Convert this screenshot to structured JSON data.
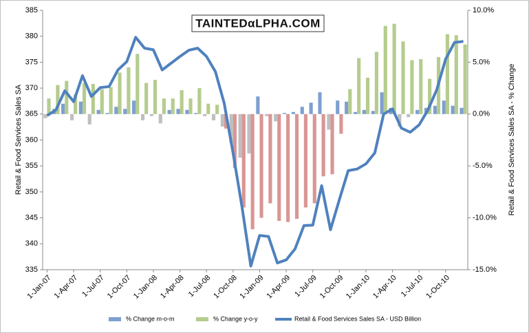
{
  "chart_data": {
    "type": "bar",
    "logo": "TAINTEDαLPHA.COM",
    "y_label": "Retail & Food Services Sales SA",
    "y2_label": "Retail & Food Services Sales SA - % Change",
    "categories": [
      "1-Jan-07",
      null,
      null,
      "1-Apr-07",
      null,
      null,
      "1-Jul-07",
      null,
      null,
      "1-Oct-07",
      null,
      null,
      "1-Jan-08",
      null,
      null,
      "1-Apr-08",
      null,
      null,
      "1-Jul-08",
      null,
      null,
      "1-Oct-08",
      null,
      null,
      "1-Jan-09",
      null,
      null,
      "1-Apr-09",
      null,
      null,
      "1-Jul-09",
      null,
      null,
      "1-Oct-09",
      null,
      null,
      "1-Jan-10",
      null,
      null,
      "1-Apr-10",
      null,
      null,
      "1-Jul-10",
      null,
      null,
      "1-Oct-10",
      null,
      null
    ],
    "series": [
      {
        "name": "% Change m-o-m",
        "type": "bar",
        "axis": "y2",
        "color": "#7f9fd0",
        "negative_color": "#bfbfbf",
        "values": [
          -0.4,
          0.5,
          1.0,
          -0.6,
          1.2,
          -1.0,
          0.4,
          0.1,
          0.7,
          0.5,
          1.3,
          -0.6,
          -0.2,
          -0.9,
          0.4,
          0.5,
          0.4,
          0.1,
          -0.2,
          -0.6,
          -1.2,
          -2.8,
          -4.2,
          -3.8,
          1.7,
          -0.2,
          -0.7,
          0.1,
          0.2,
          0.7,
          1.1,
          2.1,
          -1.5,
          1.3,
          1.2,
          0.2,
          0.4,
          0.3,
          2.1,
          0.6,
          -1.2,
          -0.3,
          0.4,
          0.6,
          0.8,
          1.3,
          0.8,
          0.6
        ]
      },
      {
        "name": "% Change y-o-y",
        "type": "bar",
        "axis": "y2",
        "color": "#b5cc8e",
        "negative_color": "#d99694",
        "values": [
          1.5,
          2.8,
          3.2,
          1.9,
          3.0,
          2.9,
          2.4,
          2.6,
          4.0,
          4.5,
          5.8,
          3.0,
          3.3,
          1.5,
          1.5,
          2.3,
          1.5,
          2.5,
          1.0,
          0.9,
          -1.4,
          -5.2,
          -9.0,
          -11.1,
          -10.0,
          -8.6,
          -10.3,
          -10.4,
          -10.1,
          -9.0,
          -8.6,
          -6.0,
          -5.8,
          -1.9,
          2.4,
          5.4,
          3.5,
          6.0,
          8.5,
          8.7,
          7.0,
          5.2,
          5.3,
          3.4,
          5.5,
          7.7,
          7.6,
          6.7
        ]
      },
      {
        "name": "Retail & Food Services Sales SA - USD Billion",
        "type": "line",
        "axis": "y",
        "color": "#4f81bd",
        "values": [
          364.7,
          365.8,
          369.5,
          367.4,
          372.4,
          368.4,
          370.1,
          370.3,
          373.5,
          375.1,
          379.8,
          377.7,
          377.4,
          373.5,
          374.8,
          376.1,
          377.3,
          377.7,
          376.1,
          373.2,
          367.1,
          357.5,
          347.2,
          335.7,
          341.6,
          341.4,
          336.3,
          336.9,
          339.0,
          343.5,
          343.6,
          351.2,
          342.7,
          348.5,
          354.1,
          354.4,
          355.4,
          357.5,
          365.0,
          366.0,
          362.3,
          361.5,
          362.9,
          365.8,
          369.7,
          375.6,
          378.8,
          379.0
        ]
      }
    ],
    "ylim": [
      335,
      385
    ],
    "yticks": [
      335,
      340,
      345,
      350,
      355,
      360,
      365,
      370,
      375,
      380,
      385
    ],
    "y2lim": [
      -15,
      10
    ],
    "y2ticks": [
      {
        "value": -15,
        "label": "-15.0%"
      },
      {
        "value": -10,
        "label": "-10.0%"
      },
      {
        "value": -5,
        "label": "-5.0%"
      },
      {
        "value": 0,
        "label": "0.0%"
      },
      {
        "value": 5,
        "label": "5.0%"
      },
      {
        "value": 10,
        "label": "10.0%"
      }
    ],
    "grid": false,
    "legend": "bottom"
  }
}
